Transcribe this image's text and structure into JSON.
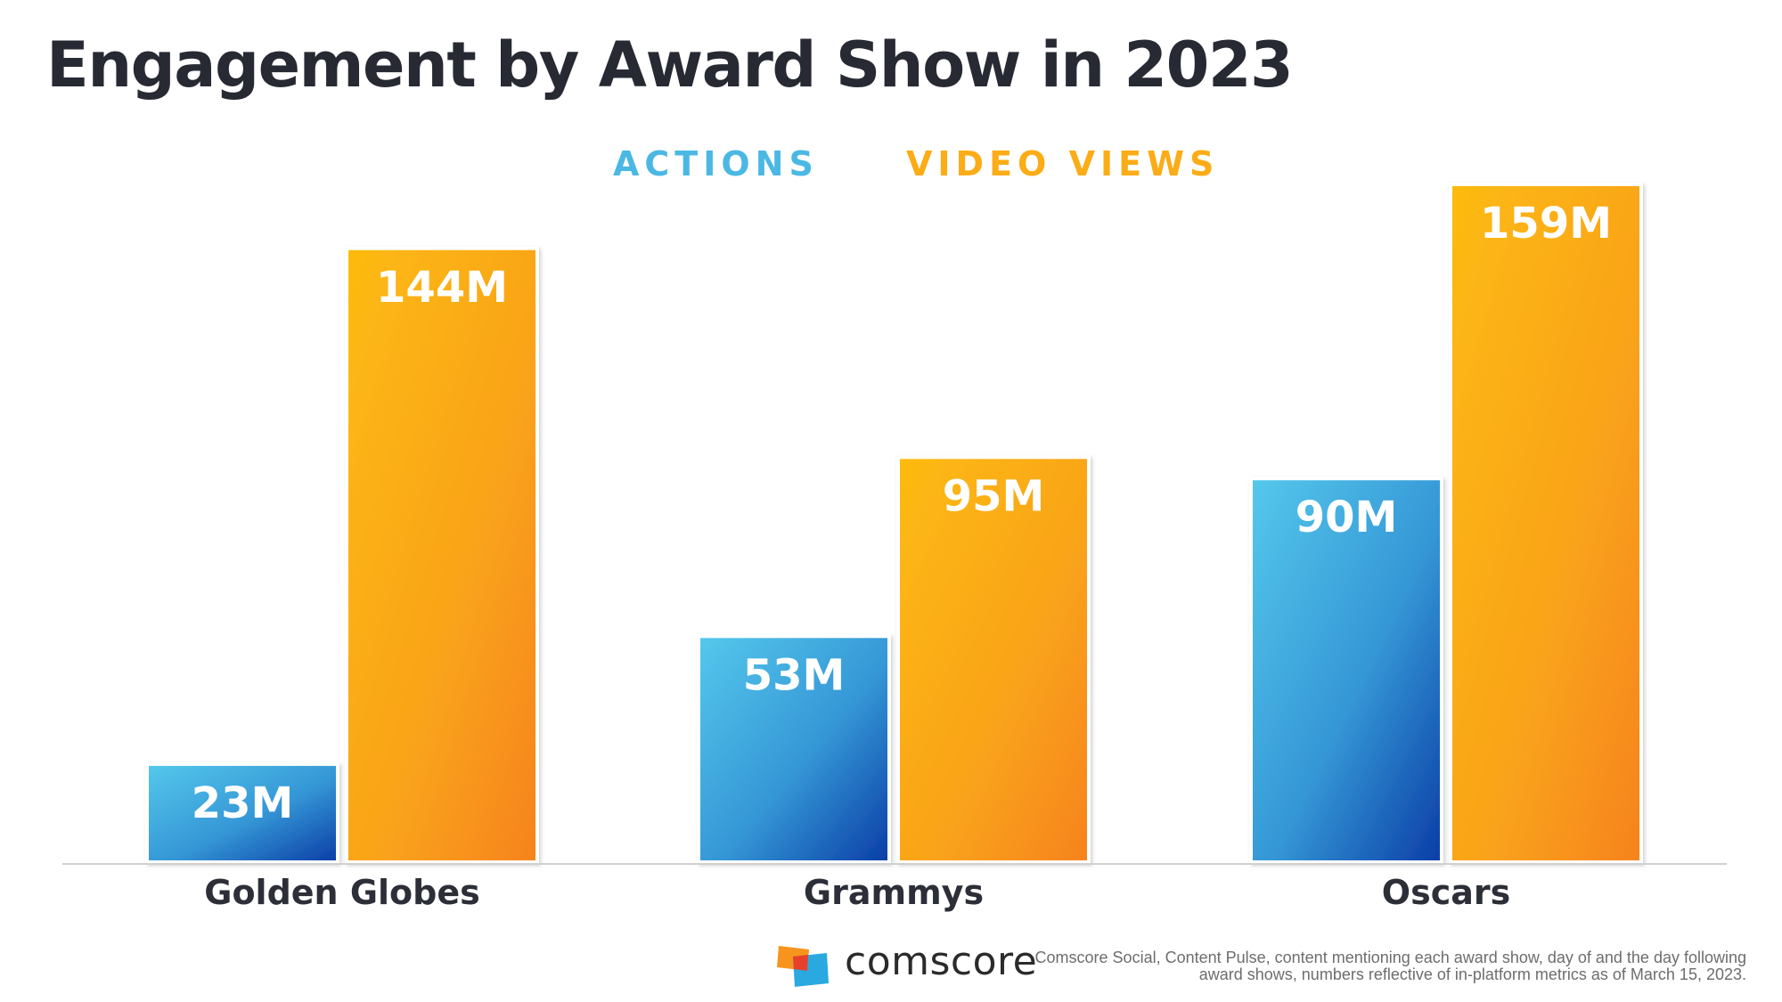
{
  "chart_data": {
    "type": "bar",
    "title": "Engagement by Award Show in 2023",
    "categories": [
      "Golden Globes",
      "Grammys",
      "Oscars"
    ],
    "series": [
      {
        "name": "ACTIONS",
        "values": [
          23,
          53,
          90
        ],
        "labels": [
          "23M",
          "53M",
          "90M"
        ],
        "color": "#4bb8e4"
      },
      {
        "name": "VIDEO VIEWS",
        "values": [
          144,
          95,
          159
        ],
        "labels": [
          "144M",
          "95M",
          "159M"
        ],
        "color": "#fbac16"
      }
    ],
    "legend": "top-center",
    "grid": false,
    "ylim": [
      0,
      159
    ]
  },
  "colors": {
    "title": "#272a33",
    "actions_top": "#55c8ec",
    "actions_bottom": "#0a3da6",
    "views_top": "#fdbb10",
    "views_bottom": "#f6831f",
    "baseline": "#d0d0d0",
    "category_label": "#2c2f38"
  },
  "footer": {
    "logo_text": "comscore",
    "source": "Comscore Social, Content Pulse, content mentioning each award show, day of and the day following award shows, numbers reflective of in-platform metrics as of March 15, 2023."
  }
}
